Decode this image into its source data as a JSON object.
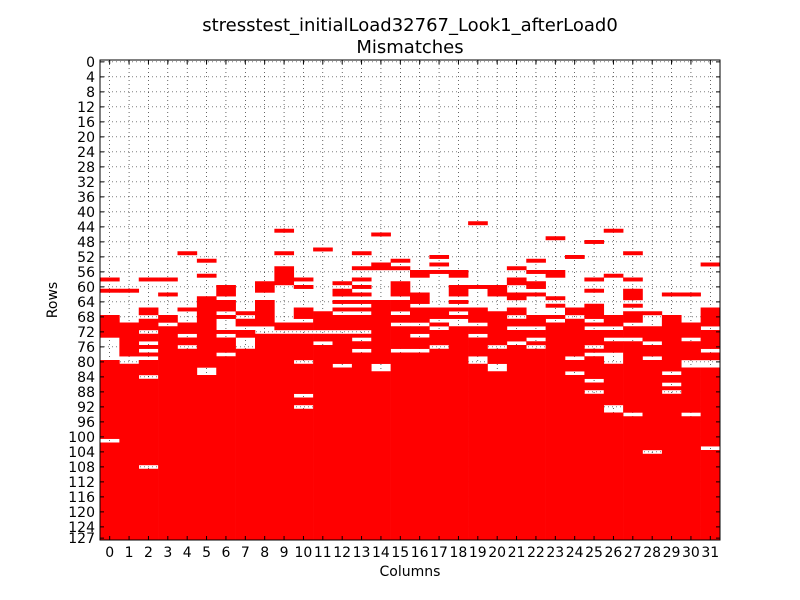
{
  "chart_data": {
    "type": "heatmap",
    "title": "stresstest_initialLoad32767_Look1_afterLoad0",
    "subtitle": "Mismatches",
    "xlabel": "Columns",
    "ylabel": "Rows",
    "xlim": [
      0,
      31
    ],
    "ylim": [
      0,
      127
    ],
    "grid": true,
    "cell_color": "#ff0000",
    "background_color": "#ffffff",
    "x_ticks": [
      "0",
      "1",
      "2",
      "3",
      "4",
      "5",
      "6",
      "7",
      "8",
      "9",
      "10",
      "11",
      "12",
      "13",
      "14",
      "15",
      "16",
      "17",
      "18",
      "19",
      "20",
      "21",
      "22",
      "23",
      "24",
      "25",
      "26",
      "27",
      "28",
      "29",
      "30",
      "31"
    ],
    "y_ticks": [
      "0",
      "4",
      "8",
      "12",
      "16",
      "20",
      "24",
      "28",
      "32",
      "36",
      "40",
      "44",
      "48",
      "52",
      "56",
      "60",
      "64",
      "68",
      "72",
      "76",
      "80",
      "84",
      "88",
      "92",
      "96",
      "100",
      "104",
      "108",
      "112",
      "116",
      "120",
      "124",
      "127"
    ],
    "columns": [
      {
        "col": 0,
        "fill_from": 68,
        "marks": [
          58,
          61
        ],
        "gaps": [
          74,
          75,
          76,
          77,
          78,
          79,
          101
        ]
      },
      {
        "col": 1,
        "fill_from": 70,
        "marks": [
          61
        ],
        "gaps": [
          79,
          80
        ]
      },
      {
        "col": 2,
        "fill_from": 66,
        "marks": [
          58
        ],
        "gaps": [
          68,
          72,
          75,
          77,
          79,
          84,
          108
        ]
      },
      {
        "col": 3,
        "fill_from": 68,
        "marks": [
          58,
          62
        ],
        "gaps": [
          70
        ]
      },
      {
        "col": 4,
        "fill_from": 70,
        "marks": [
          51,
          66
        ],
        "gaps": [
          73,
          76
        ]
      },
      {
        "col": 5,
        "fill_from": 63,
        "marks": [
          53,
          57
        ],
        "gaps": [
          82,
          83
        ]
      },
      {
        "col": 6,
        "fill_from": 60,
        "marks": [],
        "gaps": [
          63,
          67,
          69,
          70,
          71,
          73,
          78
        ]
      },
      {
        "col": 7,
        "fill_from": 69,
        "marks": [
          67
        ],
        "gaps": [
          71,
          74,
          75,
          76
        ]
      },
      {
        "col": 8,
        "fill_from": 64,
        "marks": [
          59,
          60,
          61
        ],
        "gaps": [
          71,
          72
        ]
      },
      {
        "col": 9,
        "fill_from": 70,
        "marks": [
          45,
          51,
          55,
          56,
          57,
          58,
          59
        ],
        "gaps": [
          72
        ]
      },
      {
        "col": 10,
        "fill_from": 66,
        "marks": [
          58,
          60
        ],
        "gaps": [
          69,
          72,
          80,
          89,
          92
        ]
      },
      {
        "col": 11,
        "fill_from": 67,
        "marks": [
          50
        ],
        "gaps": [
          72,
          75
        ]
      },
      {
        "col": 12,
        "fill_from": 68,
        "marks": [
          59,
          61,
          62,
          64,
          66
        ],
        "gaps": [
          72,
          81
        ]
      },
      {
        "col": 13,
        "fill_from": 68,
        "marks": [
          51,
          55,
          58,
          60,
          62,
          64,
          66
        ],
        "gaps": [
          72,
          74,
          77
        ]
      },
      {
        "col": 14,
        "fill_from": 64,
        "marks": [
          46,
          54,
          55
        ],
        "gaps": [
          81,
          82
        ]
      },
      {
        "col": 15,
        "fill_from": 59,
        "marks": [
          53,
          55
        ],
        "gaps": [
          63,
          67,
          70,
          77
        ]
      },
      {
        "col": 16,
        "fill_from": 56,
        "marks": [],
        "gaps": [
          58,
          59,
          60,
          61,
          65,
          70,
          73,
          77
        ]
      },
      {
        "col": 17,
        "fill_from": 66,
        "marks": [
          52,
          54,
          56
        ],
        "gaps": [
          69,
          71,
          76
        ]
      },
      {
        "col": 18,
        "fill_from": 56,
        "marks": [],
        "gaps": [
          58,
          59,
          63,
          65,
          67,
          69,
          70
        ]
      },
      {
        "col": 19,
        "fill_from": 66,
        "marks": [
          43,
          60
        ],
        "gaps": [
          70,
          73,
          79,
          80
        ]
      },
      {
        "col": 20,
        "fill_from": 60,
        "marks": [],
        "gaps": [
          63,
          64,
          65,
          66,
          76,
          81,
          82
        ]
      },
      {
        "col": 21,
        "fill_from": 58,
        "marks": [
          55
        ],
        "gaps": [
          60,
          61,
          64,
          65,
          68,
          71,
          75
        ]
      },
      {
        "col": 22,
        "fill_from": 59,
        "marks": [
          53,
          56
        ],
        "gaps": [
          61,
          63,
          64,
          65,
          66,
          67,
          71,
          74,
          76
        ]
      },
      {
        "col": 23,
        "fill_from": 56,
        "marks": [
          47,
          63
        ],
        "gaps": [
          58,
          59,
          60,
          61,
          62,
          64,
          66,
          67,
          69
        ]
      },
      {
        "col": 24,
        "fill_from": 66,
        "marks": [
          52
        ],
        "gaps": [
          68,
          79,
          83
        ]
      },
      {
        "col": 25,
        "fill_from": 65,
        "marks": [
          48,
          58,
          61
        ],
        "gaps": [
          69,
          71,
          76,
          78,
          85,
          88
        ]
      },
      {
        "col": 26,
        "fill_from": 68,
        "marks": [
          45,
          57
        ],
        "gaps": [
          71,
          74,
          78,
          79,
          80,
          92,
          93
        ]
      },
      {
        "col": 27,
        "fill_from": 61,
        "marks": [
          51,
          58
        ],
        "gaps": [
          64,
          66,
          70,
          74,
          94
        ]
      },
      {
        "col": 28,
        "fill_from": 71,
        "marks": [
          67
        ],
        "gaps": [
          75,
          79,
          104
        ]
      },
      {
        "col": 29,
        "fill_from": 69,
        "marks": [
          62,
          68
        ],
        "gaps": [
          83,
          86,
          88
        ]
      },
      {
        "col": 30,
        "fill_from": 70,
        "marks": [
          62
        ],
        "gaps": [
          74,
          80,
          81,
          94
        ]
      },
      {
        "col": 31,
        "fill_from": 66,
        "marks": [
          54
        ],
        "gaps": [
          71,
          77,
          80,
          81,
          103
        ]
      }
    ]
  }
}
